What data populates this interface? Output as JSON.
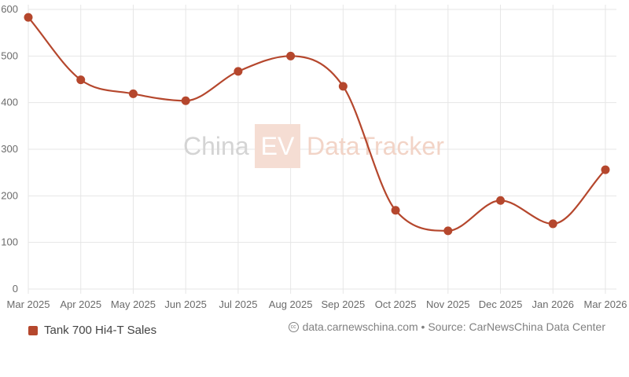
{
  "chart_data": {
    "type": "line",
    "categories": [
      "Mar 2025",
      "Apr 2025",
      "May 2025",
      "Jun 2025",
      "Jul 2025",
      "Aug 2025",
      "Sep 2025",
      "Oct 2025",
      "Nov 2025",
      "Dec 2025",
      "Jan 2026",
      "Mar 2026"
    ],
    "series": [
      {
        "name": "Tank 700 Hi4-T Sales",
        "values": [
          583,
          449,
          419,
          404,
          467,
          500,
          435,
          169,
          125,
          190,
          140,
          256
        ],
        "color": "#b5472d"
      }
    ],
    "ylim": [
      0,
      600
    ],
    "yticks": [
      0,
      100,
      200,
      300,
      400,
      500,
      600
    ],
    "grid": true,
    "legend_position": "bottom-left"
  },
  "watermark": {
    "left": "China",
    "badge": "EV",
    "right": "DataTracker"
  },
  "source": {
    "icon": "cc-icon",
    "text": "data.carnewschina.com • Source: CarNewsChina Data Center"
  }
}
